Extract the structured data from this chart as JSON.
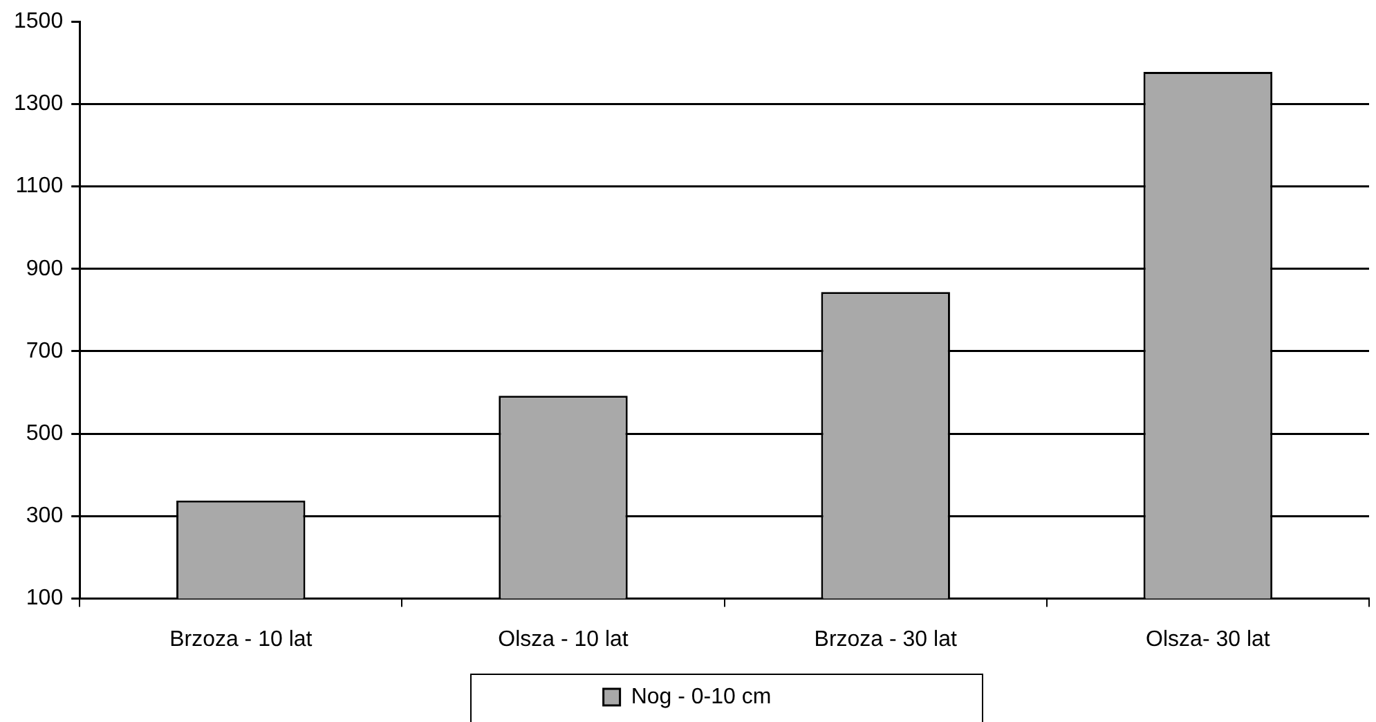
{
  "chart_data": {
    "type": "bar",
    "categories": [
      "Brzoza - 10 lat",
      "Olsza - 10 lat",
      "Brzoza - 30 lat",
      "Olsza- 30 lat"
    ],
    "series": [
      {
        "name": "Nog - 0-10 cm",
        "color": "#a9a9a9",
        "values": [
          338,
          592,
          844,
          1378
        ]
      }
    ],
    "ylim": [
      100,
      1500
    ],
    "yticks": [
      100,
      300,
      500,
      700,
      900,
      1100,
      1300,
      1500
    ],
    "grid": "y",
    "legend": "bottom"
  }
}
